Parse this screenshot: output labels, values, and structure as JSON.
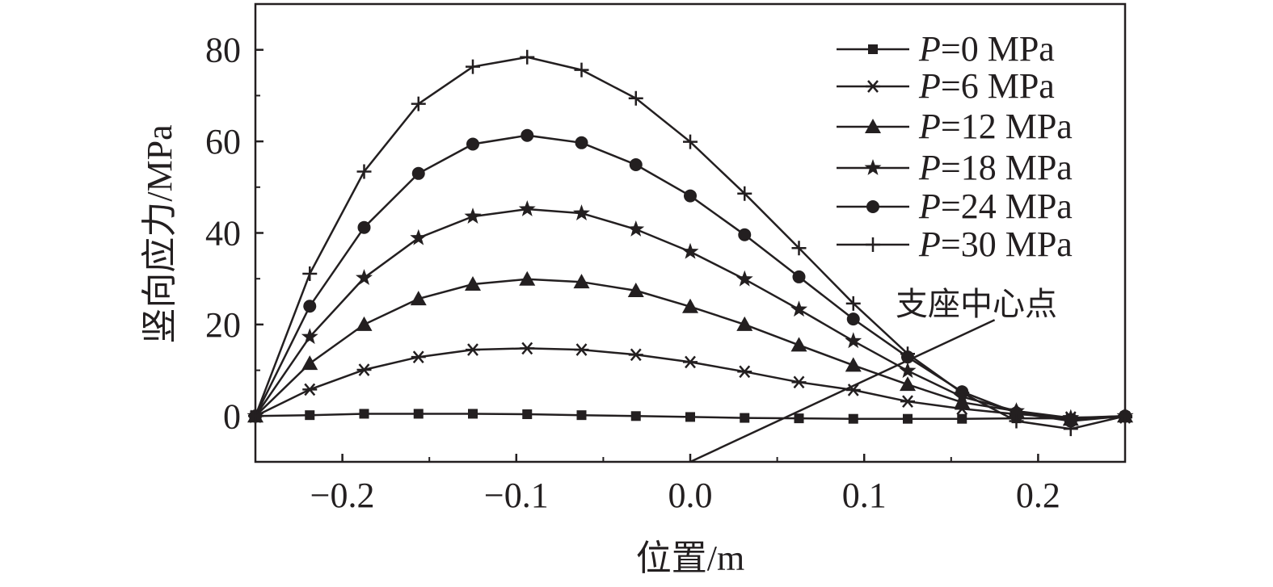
{
  "chart_data": {
    "type": "line",
    "title": "",
    "xlabel": "位置/m",
    "ylabel": "竖向应力/MPa",
    "xlim": [
      -0.25,
      0.25
    ],
    "ylim": [
      -10,
      90
    ],
    "xticks": [
      -0.2,
      -0.1,
      0.0,
      0.1,
      0.2
    ],
    "xtick_labels": [
      "−0.2",
      "−0.1",
      "0.0",
      "0.1",
      "0.2"
    ],
    "yticks": [
      0,
      20,
      40,
      60,
      80
    ],
    "ytick_labels": [
      "0",
      "20",
      "40",
      "60",
      "80"
    ],
    "grid": false,
    "legend_position": "top-right",
    "x": [
      -0.25,
      -0.21875,
      -0.1875,
      -0.15625,
      -0.125,
      -0.09375,
      -0.0625,
      -0.03125,
      0.0,
      0.03125,
      0.0625,
      0.09375,
      0.125,
      0.15625,
      0.1875,
      0.21875,
      0.25
    ],
    "series": [
      {
        "name": "P=0 MPa",
        "p_label": "P",
        "rest_label": "=0 MPa",
        "marker": "square",
        "values": [
          0,
          0.2,
          0.5,
          0.5,
          0.5,
          0.4,
          0.2,
          0.0,
          -0.2,
          -0.4,
          -0.5,
          -0.6,
          -0.6,
          -0.6,
          -0.5,
          -0.5,
          0
        ]
      },
      {
        "name": "P=6 MPa",
        "p_label": "P",
        "rest_label": "=6 MPa",
        "marker": "asterisk",
        "values": [
          0,
          5.8,
          10.1,
          12.9,
          14.5,
          14.8,
          14.5,
          13.4,
          11.8,
          9.7,
          7.4,
          5.7,
          3.2,
          1.6,
          0.4,
          -0.3,
          -0.3
        ]
      },
      {
        "name": "P=12 MPa",
        "p_label": "P",
        "rest_label": "=12 MPa",
        "marker": "triangle",
        "values": [
          0,
          11.5,
          20.0,
          25.6,
          28.8,
          29.9,
          29.3,
          27.4,
          23.9,
          20.0,
          15.5,
          11.1,
          6.9,
          3.0,
          1.1,
          -0.7,
          0
        ]
      },
      {
        "name": "P=18 MPa",
        "p_label": "P",
        "rest_label": "=18 MPa",
        "marker": "star",
        "values": [
          0,
          17.3,
          30.2,
          38.9,
          43.6,
          45.2,
          44.3,
          40.8,
          35.9,
          29.9,
          23.3,
          16.4,
          9.9,
          4.2,
          1.1,
          -0.4,
          0
        ]
      },
      {
        "name": "P=24 MPa",
        "p_label": "P",
        "rest_label": "=24 MPa",
        "marker": "circle",
        "values": [
          0,
          24.0,
          41.2,
          53.0,
          59.4,
          61.3,
          59.7,
          54.9,
          48.1,
          39.6,
          30.4,
          21.2,
          12.9,
          5.3,
          0.7,
          -1.1,
          0
        ]
      },
      {
        "name": "P=30 MPa",
        "p_label": "P",
        "rest_label": "=30 MPa",
        "marker": "plus",
        "values": [
          0,
          31.1,
          53.4,
          68.2,
          76.3,
          78.4,
          75.6,
          69.4,
          59.9,
          48.6,
          36.7,
          24.6,
          13.6,
          5.1,
          -1.1,
          -2.8,
          0
        ]
      }
    ],
    "annotations": [
      {
        "text": "支座中心点",
        "arrow_from": [
          0.0,
          -10
        ],
        "arrow_to": [
          0.175,
          21
        ]
      }
    ]
  }
}
